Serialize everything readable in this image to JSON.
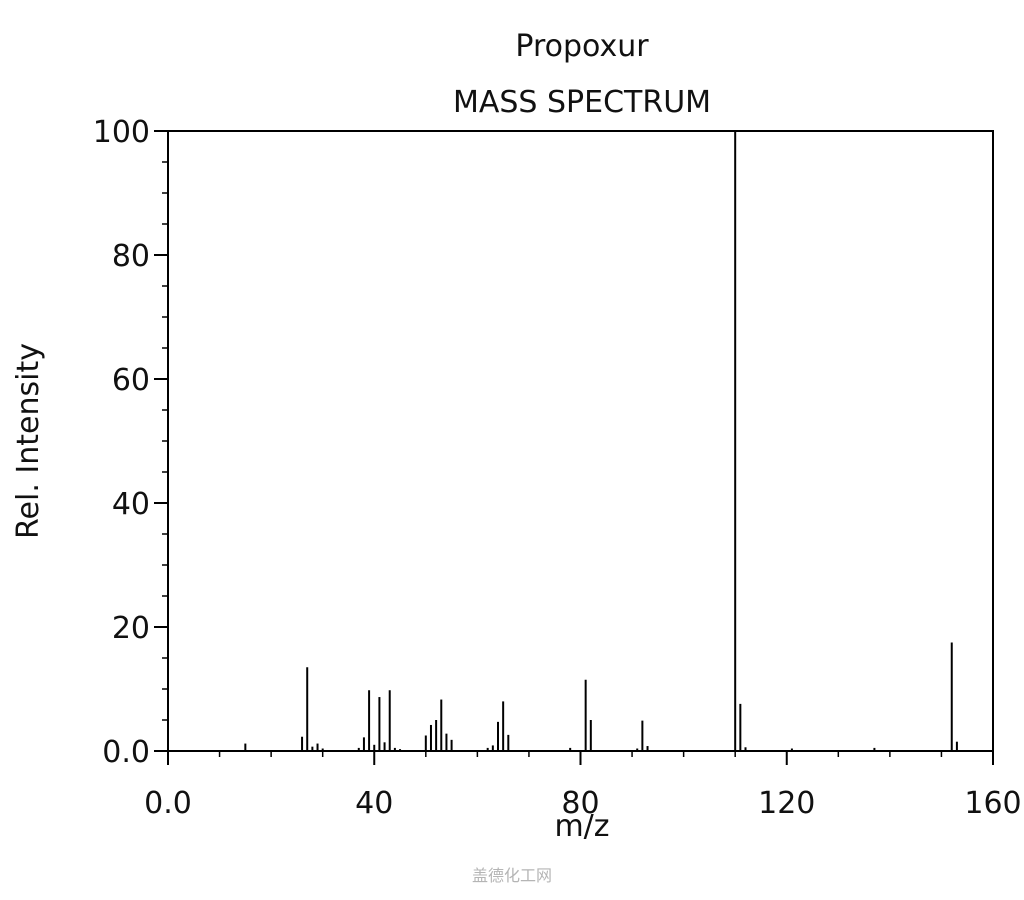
{
  "chart_data": {
    "type": "bar",
    "title": "Propoxur",
    "subtitle": "MASS SPECTRUM",
    "xlabel": "m/z",
    "ylabel": "Rel. Intensity",
    "xlim": [
      0,
      160
    ],
    "ylim": [
      0,
      100
    ],
    "x_ticks": [
      0,
      40,
      80,
      120,
      160
    ],
    "x_tick_labels": [
      "0.0",
      "40",
      "80",
      "120",
      "160"
    ],
    "y_ticks": [
      0,
      20,
      40,
      60,
      80,
      100
    ],
    "y_tick_labels": [
      "0.0",
      "20",
      "40",
      "60",
      "80",
      "100"
    ],
    "grid": false,
    "series": [
      {
        "x": [
          15,
          26,
          27,
          28,
          29,
          30,
          37,
          38,
          39,
          40,
          41,
          42,
          43,
          44,
          45,
          50,
          51,
          52,
          53,
          54,
          55,
          62,
          63,
          64,
          65,
          66,
          78,
          81,
          82,
          91,
          92,
          93,
          110,
          111,
          112,
          121,
          137,
          152,
          153
        ],
        "values": [
          1.2,
          2.3,
          13.5,
          0.7,
          1.2,
          0.4,
          0.5,
          2.2,
          9.8,
          1.0,
          8.7,
          1.4,
          9.8,
          0.5,
          0.3,
          2.5,
          4.2,
          5.0,
          8.3,
          2.8,
          1.8,
          0.5,
          0.9,
          4.7,
          8.0,
          2.6,
          0.5,
          11.5,
          5.0,
          0.4,
          4.9,
          0.8,
          100,
          7.6,
          0.6,
          0.4,
          0.5,
          17.5,
          1.5
        ]
      }
    ]
  },
  "watermark": "盖德化工网"
}
